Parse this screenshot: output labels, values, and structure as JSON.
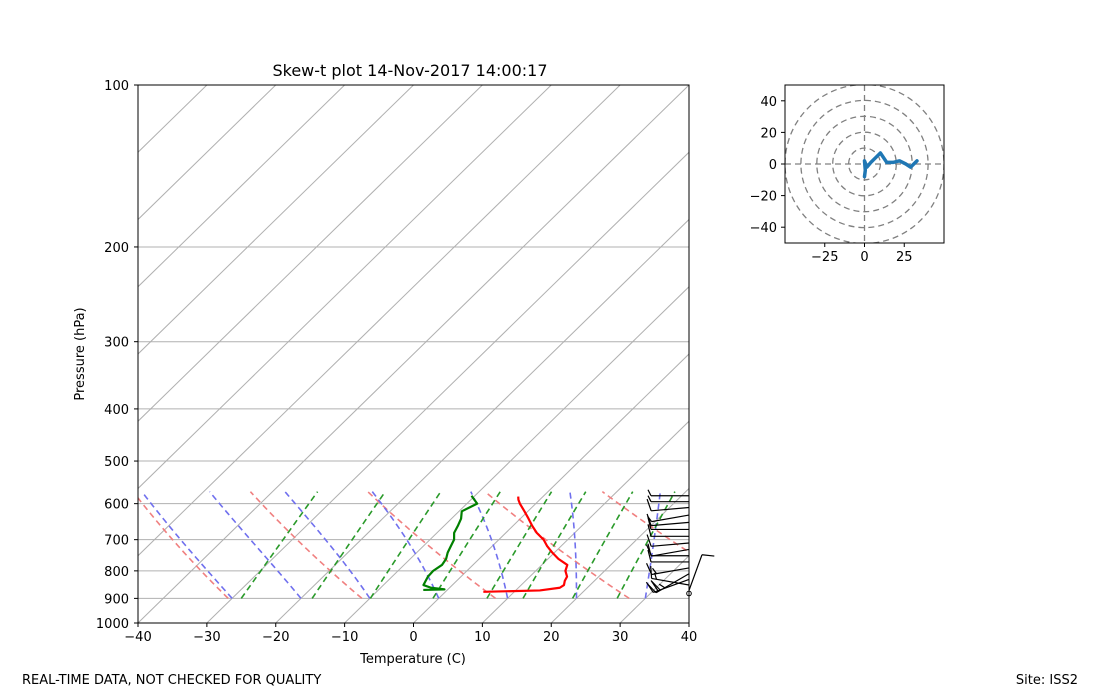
{
  "footer": {
    "left": "REAL-TIME DATA, NOT CHECKED FOR QUALITY",
    "right": "Site: ISS2"
  },
  "chart_data": [
    {
      "type": "skew-t",
      "title": "Skew-t plot 14-Nov-2017 14:00:17",
      "xlabel": "Temperature (C)",
      "ylabel": "Pressure (hPa)",
      "xlim": [
        -40,
        40
      ],
      "ylim": [
        1000,
        100
      ],
      "x_ticks": [
        -40,
        -30,
        -20,
        -10,
        0,
        10,
        20,
        30,
        40
      ],
      "y_ticks": [
        100,
        200,
        300,
        400,
        500,
        600,
        700,
        800,
        900,
        1000
      ],
      "grid": true,
      "isotherms": [
        -130,
        -120,
        -110,
        -100,
        -90,
        -80,
        -70,
        -60,
        -50,
        -40,
        -30,
        -20,
        -10,
        0,
        10,
        20,
        30,
        40
      ],
      "dry_adiabats_theta_K": [
        230,
        250,
        270,
        290,
        310,
        330,
        350
      ],
      "moist_adiabats_start_C": [
        -30,
        -20,
        -10,
        0,
        10,
        20,
        30
      ],
      "mixing_ratios_gkg": [
        0.4,
        1,
        2,
        4,
        7,
        10,
        16,
        24
      ],
      "series": [
        {
          "name": "Temperature",
          "color": "#ff0000",
          "pressure": [
            875,
            870,
            860,
            850,
            835,
            820,
            800,
            780,
            760,
            740,
            720,
            700,
            680,
            660,
            640,
            620,
            600,
            590,
            582
          ],
          "values": [
            5.5,
            13.5,
            16.0,
            16.2,
            15.7,
            15.4,
            14.3,
            13.7,
            11.5,
            9.7,
            8.0,
            6.5,
            4.5,
            2.8,
            1.2,
            -0.5,
            -2.3,
            -3.1,
            -3.6
          ]
        },
        {
          "name": "Dewpoint",
          "color": "#008000",
          "pressure": [
            868,
            866,
            860,
            850,
            840,
            820,
            800,
            780,
            760,
            740,
            720,
            700,
            680,
            660,
            640,
            620,
            600,
            590,
            580
          ],
          "values": [
            -3.5,
            -0.5,
            -2.7,
            -4.2,
            -4.4,
            -4.8,
            -4.9,
            -4.5,
            -4.8,
            -5.5,
            -6.0,
            -6.5,
            -7.5,
            -8.0,
            -8.6,
            -9.6,
            -8.5,
            -9.5,
            -10.5
          ]
        }
      ],
      "wind_barbs": {
        "pressure": [
          870,
          850,
          830,
          810,
          790,
          770,
          750,
          730,
          710,
          690,
          670,
          650,
          630,
          610,
          595,
          580
        ],
        "speed_kt": [
          10,
          15,
          20,
          25,
          15,
          10,
          10,
          10,
          10,
          10,
          10,
          10,
          5,
          10,
          5,
          5
        ],
        "direction_deg": [
          20,
          280,
          250,
          240,
          260,
          270,
          270,
          260,
          265,
          270,
          270,
          265,
          260,
          265,
          270,
          270
        ]
      }
    },
    {
      "type": "hodograph",
      "xlim": [
        -50,
        50
      ],
      "ylim": [
        -50,
        50
      ],
      "x_ticks": [
        -25,
        0,
        25
      ],
      "y_ticks": [
        -40,
        -20,
        0,
        20,
        40
      ],
      "ring_radii": [
        10,
        20,
        30,
        40,
        50
      ],
      "series": [
        {
          "name": "wind",
          "color": "#1f77b4",
          "u": [
            0,
            0.5,
            0,
            1.5,
            4,
            7,
            10,
            14,
            18,
            22,
            26,
            29,
            33
          ],
          "v": [
            -8,
            -4,
            2,
            -2,
            1,
            4,
            7,
            1,
            1,
            2,
            0,
            -2,
            2
          ]
        }
      ]
    }
  ]
}
